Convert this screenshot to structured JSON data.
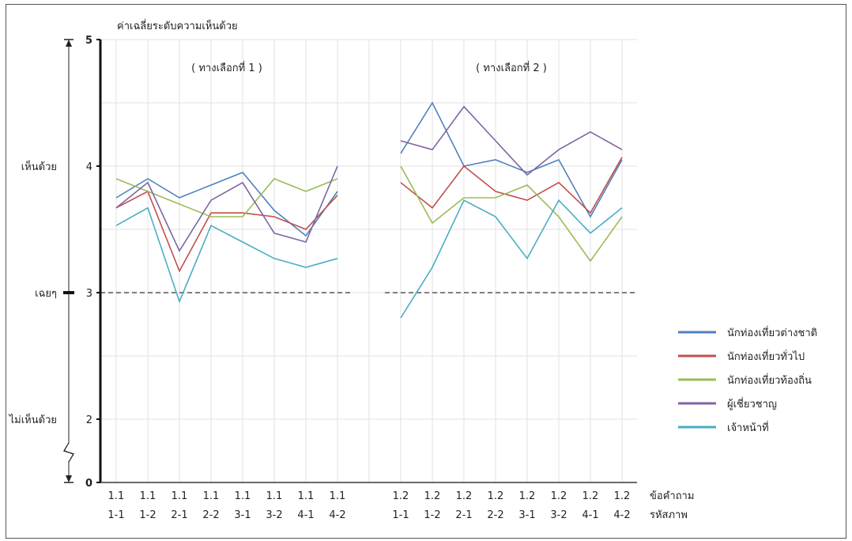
{
  "chart_data": {
    "type": "line",
    "ylabel": "ค่าเฉลี่ยระดับความเห็นด้วย",
    "y_ticks": [
      "5",
      "4",
      "3",
      "2",
      "0"
    ],
    "y_scale_labels": [
      {
        "label": "เห็นด้วย",
        "value": 4
      },
      {
        "label": "เฉยๆ",
        "value": 3
      },
      {
        "label": "ไม่เห็นด้วย",
        "value": 2
      }
    ],
    "ylim": [
      0,
      5
    ],
    "y_axis_break": "between 0 and 2",
    "reference_line": {
      "value": 3,
      "style": "dashed"
    },
    "grid": true,
    "legend_position": "right",
    "x_row_labels": [
      "ข้อคำถาม",
      "รหัสภาพ"
    ],
    "groups": [
      {
        "title": "( ทางเลือกที่  1 )",
        "question": [
          "1.1",
          "1.1",
          "1.1",
          "1.1",
          "1.1",
          "1.1",
          "1.1",
          "1.1"
        ],
        "image_code": [
          "1-1",
          "1-2",
          "2-1",
          "2-2",
          "3-1",
          "3-2",
          "4-1",
          "4-2"
        ]
      },
      {
        "title": "( ทางเลือกที่  2 )",
        "question": [
          "1.2",
          "1.2",
          "1.2",
          "1.2",
          "1.2",
          "1.2",
          "1.2",
          "1.2"
        ],
        "image_code": [
          "1-1",
          "1-2",
          "2-1",
          "2-2",
          "3-1",
          "3-2",
          "4-1",
          "4-2"
        ]
      }
    ],
    "series": [
      {
        "name": "นักท่องเที่ยวต่างชาติ",
        "color": "#4f81bd",
        "group1": [
          3.75,
          3.9,
          3.75,
          3.85,
          3.95,
          3.65,
          3.45,
          3.8
        ],
        "group2": [
          4.1,
          4.5,
          4.0,
          4.05,
          3.95,
          4.05,
          3.6,
          4.05
        ]
      },
      {
        "name": "นักท่องเที่ยวทั่วไป",
        "color": "#c0504d",
        "group1": [
          3.67,
          3.8,
          3.17,
          3.63,
          3.63,
          3.6,
          3.5,
          3.77
        ],
        "group2": [
          3.87,
          3.67,
          4.0,
          3.8,
          3.73,
          3.87,
          3.63,
          4.07
        ]
      },
      {
        "name": "นักท่องเที่ยวท้องถิ่น",
        "color": "#9bbb59",
        "group1": [
          3.9,
          3.8,
          3.7,
          3.6,
          3.6,
          3.9,
          3.8,
          3.9
        ],
        "group2": [
          4.0,
          3.55,
          3.75,
          3.75,
          3.85,
          3.6,
          3.25,
          3.6
        ]
      },
      {
        "name": "ผู้เชี่ยวชาญ",
        "color": "#8064a2",
        "group1": [
          3.67,
          3.87,
          3.33,
          3.73,
          3.87,
          3.47,
          3.4,
          4.0
        ],
        "group2": [
          4.2,
          4.13,
          4.47,
          4.2,
          3.93,
          4.13,
          4.27,
          4.13
        ]
      },
      {
        "name": "เจ้าหน้าที่",
        "color": "#4bacc6",
        "group1": [
          3.53,
          3.67,
          2.93,
          3.53,
          3.4,
          3.27,
          3.2,
          3.27
        ],
        "group2": [
          2.8,
          3.2,
          3.73,
          3.6,
          3.27,
          3.73,
          3.47,
          3.67
        ]
      }
    ]
  }
}
